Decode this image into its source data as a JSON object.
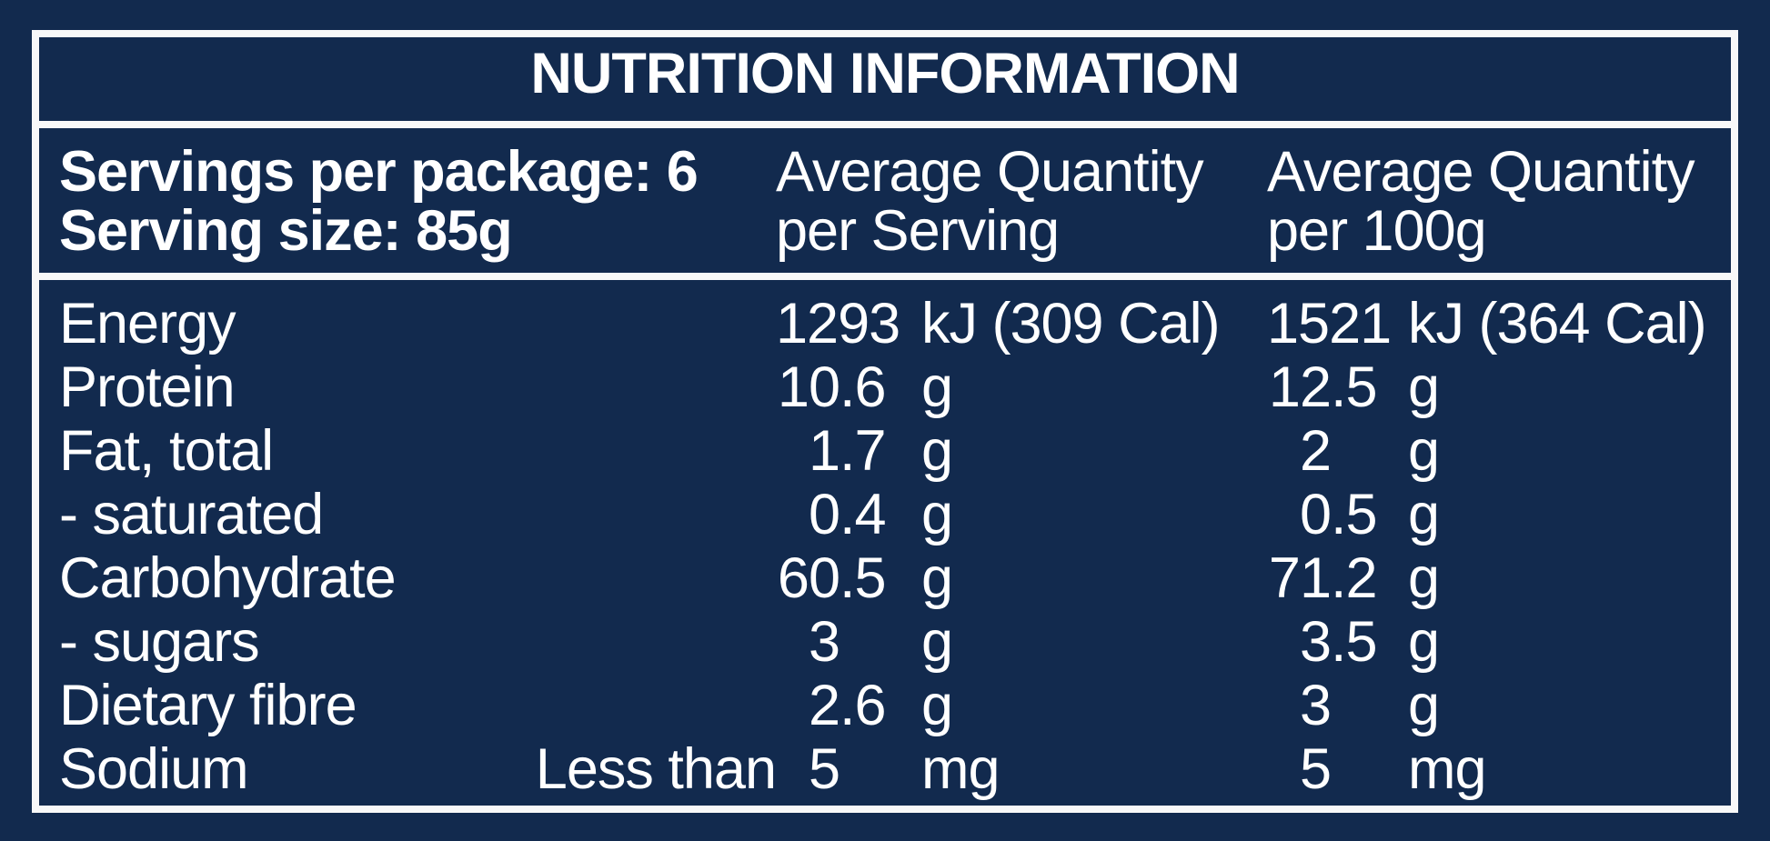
{
  "colors": {
    "background": "#122a4e",
    "line": "#f8f8f8",
    "text": "#ffffff"
  },
  "panel": {
    "title": "NUTRITION INFORMATION",
    "serving_info": {
      "servings_per_package": "Servings per package: 6",
      "serving_size": "Serving size: 85g"
    },
    "column_headers": {
      "per_serving": {
        "line1": "Average Quantity",
        "line2": "per Serving"
      },
      "per_100g": {
        "line1": "Average Quantity",
        "line2": "per 100g"
      }
    },
    "rows": [
      {
        "label": "Energy",
        "serve": {
          "amount": "1293",
          "unit": "kJ (309 Cal)"
        },
        "per100": {
          "amount": "1521",
          "unit": "kJ (364 Cal)"
        }
      },
      {
        "label": "Protein",
        "serve": {
          "amount": "10.6",
          "unit": "g"
        },
        "per100": {
          "amount": "12.5",
          "unit": "g"
        }
      },
      {
        "label": "Fat, total",
        "serve": {
          "amount": "1.7",
          "unit": "g"
        },
        "per100": {
          "amount": "2",
          "unit": "g"
        }
      },
      {
        "label": "- saturated",
        "sub": true,
        "serve": {
          "amount": "0.4",
          "unit": "g"
        },
        "per100": {
          "amount": "0.5",
          "unit": "g"
        }
      },
      {
        "label": "Carbohydrate",
        "serve": {
          "amount": "60.5",
          "unit": "g"
        },
        "per100": {
          "amount": "71.2",
          "unit": "g"
        }
      },
      {
        "label": "- sugars",
        "sub": true,
        "serve": {
          "amount": "3",
          "unit": "g"
        },
        "per100": {
          "amount": "3.5",
          "unit": "g"
        }
      },
      {
        "label": "Dietary fibre",
        "serve": {
          "amount": "2.6",
          "unit": "g"
        },
        "per100": {
          "amount": "3",
          "unit": "g"
        }
      },
      {
        "label": "Sodium",
        "serve": {
          "qualifier": "Less than",
          "amount": "5",
          "unit": "mg"
        },
        "per100": {
          "amount": "5",
          "unit": "mg"
        }
      }
    ]
  }
}
